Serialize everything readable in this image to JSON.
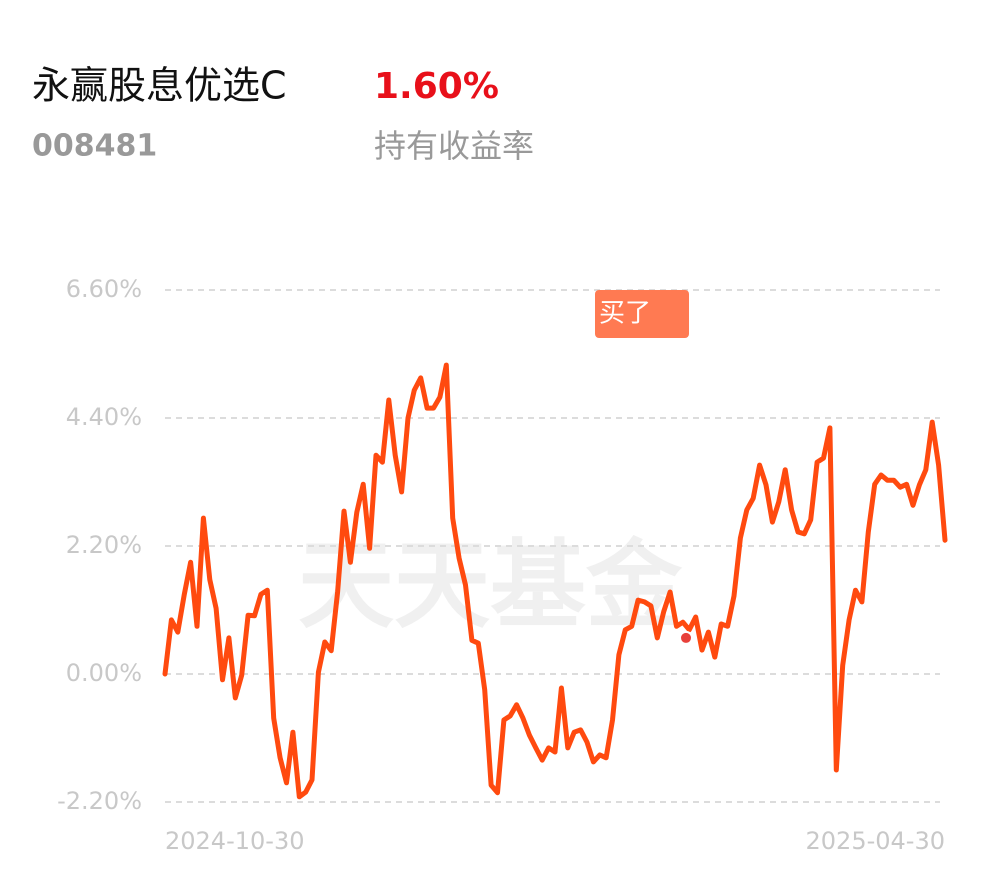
{
  "header": {
    "name": "永赢股息优选C",
    "return": "1.60%",
    "code": "008481",
    "return_label": "持有收益率"
  },
  "chart_data": {
    "type": "line",
    "watermark": "天天基金",
    "categories": [
      "2024-10-30",
      null,
      null,
      null,
      null,
      null,
      null,
      null,
      null,
      null,
      null,
      null,
      null,
      null,
      null,
      null,
      null,
      null,
      null,
      null,
      null,
      null,
      null,
      null,
      null,
      null,
      null,
      null,
      null,
      null,
      null,
      null,
      null,
      null,
      null,
      null,
      null,
      null,
      null,
      null,
      null,
      null,
      null,
      null,
      null,
      null,
      null,
      null,
      null,
      null,
      null,
      null,
      null,
      null,
      null,
      null,
      null,
      null,
      null,
      null,
      null,
      null,
      null,
      null,
      null,
      null,
      null,
      null,
      null,
      null,
      null,
      null,
      null,
      null,
      null,
      null,
      null,
      null,
      null,
      null,
      null,
      null,
      null,
      null,
      null,
      null,
      null,
      null,
      null,
      null,
      null,
      null,
      null,
      null,
      null,
      null,
      null,
      null,
      null,
      null,
      null,
      null,
      null,
      null,
      null,
      null,
      null,
      null,
      null,
      null,
      null,
      null,
      null,
      null,
      null,
      null,
      null,
      null,
      null,
      null,
      null,
      null,
      "2025-04-30"
    ],
    "series": [
      {
        "color": "#ff4a0f",
        "values": [
          0,
          0.93,
          0.72,
          1.36,
          1.92,
          0.82,
          2.68,
          1.62,
          1.13,
          -0.1,
          0.62,
          -0.41,
          -0.02,
          1.01,
          1.0,
          1.37,
          1.44,
          -0.76,
          -1.44,
          -1.87,
          -1.0,
          -2.11,
          -2.03,
          -1.82,
          0.03,
          0.55,
          0.4,
          1.41,
          2.8,
          1.92,
          2.78,
          3.26,
          2.16,
          3.76,
          3.64,
          4.71,
          3.76,
          3.13,
          4.4,
          4.88,
          5.09,
          4.57,
          4.57,
          4.76,
          5.31,
          2.68,
          1.99,
          1.53,
          0.58,
          0.53,
          -0.27,
          -1.91,
          -2.04,
          -0.79,
          -0.72,
          -0.53,
          -0.76,
          -1.05,
          -1.27,
          -1.48,
          -1.27,
          -1.34,
          -0.24,
          -1.27,
          -1.0,
          -0.96,
          -1.17,
          -1.51,
          -1.39,
          -1.44,
          -0.79,
          0.33,
          0.76,
          0.82,
          1.27,
          1.24,
          1.17,
          0.62,
          1.07,
          1.41,
          0.82,
          0.89,
          0.76,
          0.98,
          0.41,
          0.72,
          0.29,
          0.86,
          0.82,
          1.34,
          2.34,
          2.82,
          3.02,
          3.59,
          3.25,
          2.61,
          2.96,
          3.51,
          2.82,
          2.44,
          2.41,
          2.65,
          3.64,
          3.71,
          4.23,
          -1.65,
          0.15,
          0.93,
          1.44,
          1.24,
          2.44,
          3.26,
          3.42,
          3.33,
          3.33,
          3.21,
          3.26,
          2.9,
          3.25,
          3.51,
          4.33,
          3.59,
          2.3
        ]
      }
    ],
    "annotation": {
      "text": "买了",
      "value": 0.62,
      "color": "#ff7a52"
    },
    "ylim": [
      -2.2,
      6.6
    ],
    "yticks": [
      {
        "value": -2.2,
        "label": "-2.20%"
      },
      {
        "value": 0,
        "label": "0.00%"
      },
      {
        "value": 2.2,
        "label": "2.20%"
      },
      {
        "value": 4.4,
        "label": "4.40%"
      },
      {
        "value": 6.6,
        "label": "6.60%"
      }
    ],
    "grid": true
  }
}
